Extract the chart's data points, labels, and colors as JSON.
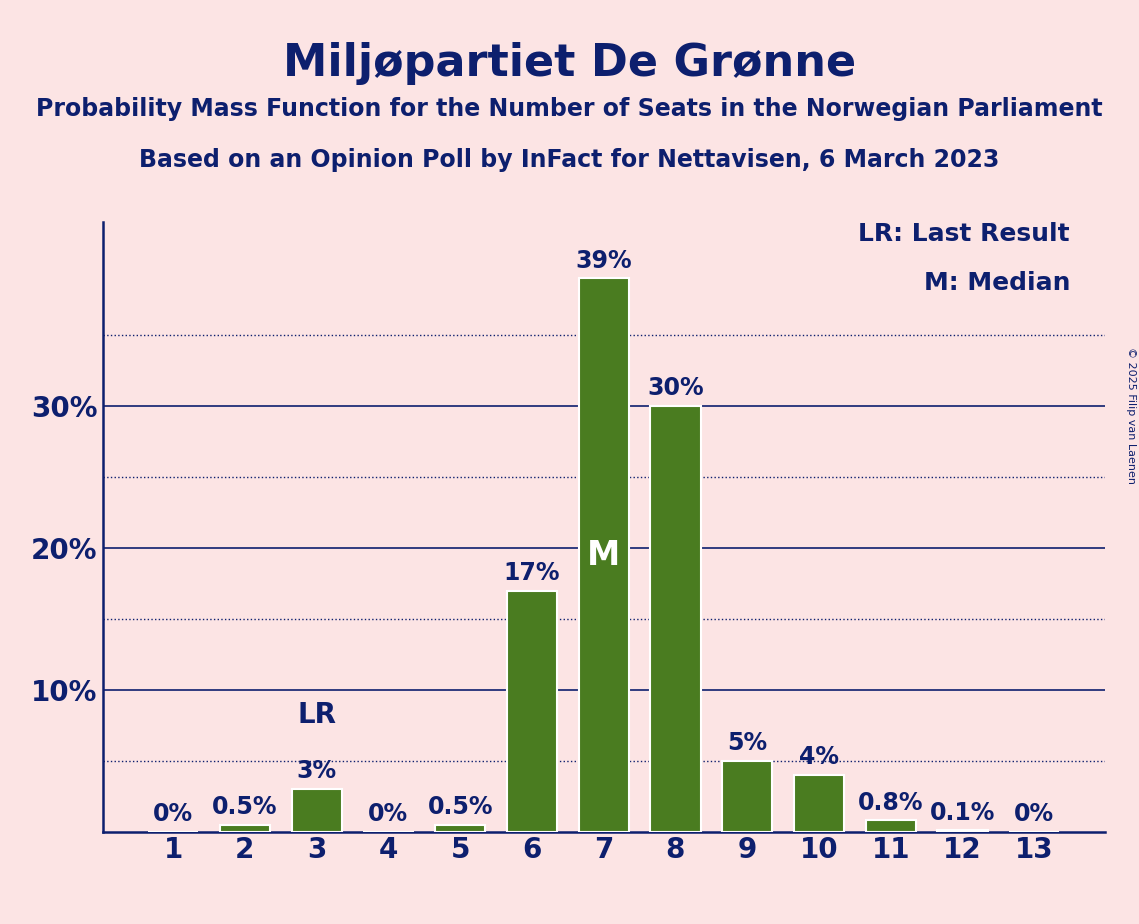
{
  "title": "Miljøpartiet De Grønne",
  "subtitle1": "Probability Mass Function for the Number of Seats in the Norwegian Parliament",
  "subtitle2": "Based on an Opinion Poll by InFact for Nettavisen, 6 March 2023",
  "copyright": "© 2025 Filip van Laenen",
  "seats": [
    1,
    2,
    3,
    4,
    5,
    6,
    7,
    8,
    9,
    10,
    11,
    12,
    13
  ],
  "probabilities": [
    0.0,
    0.5,
    3.0,
    0.0,
    0.5,
    17.0,
    39.0,
    30.0,
    5.0,
    4.0,
    0.8,
    0.1,
    0.0
  ],
  "bar_color": "#4a7c20",
  "bar_edge_color": "#ffffff",
  "median_seat": 7,
  "lr_seat": 3,
  "background_color": "#fce4e4",
  "text_color": "#0d1f6e",
  "solid_ticks": [
    10,
    20,
    30
  ],
  "dotted_ticks": [
    5,
    15,
    25,
    35
  ],
  "ylim": [
    0,
    43
  ],
  "legend_text1": "LR: Last Result",
  "legend_text2": "M: Median",
  "title_fontsize": 32,
  "subtitle_fontsize": 17,
  "tick_fontsize": 20,
  "bar_label_fontsize": 17,
  "legend_fontsize": 18,
  "lr_label_fontsize": 20
}
